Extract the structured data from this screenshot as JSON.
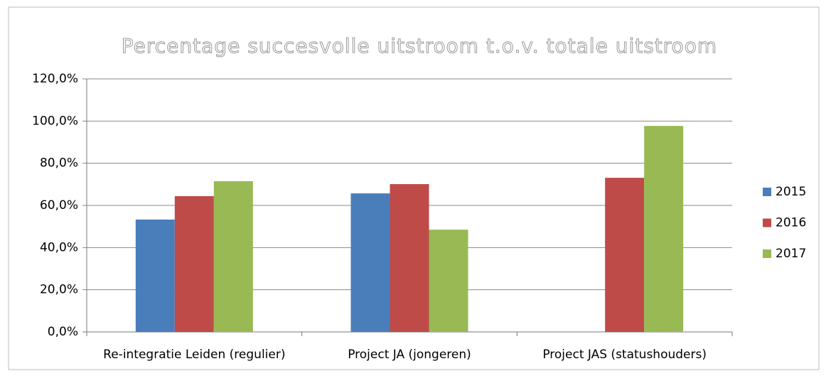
{
  "chart_data": {
    "type": "bar",
    "title": "Percentage succesvolle uitstroom t.o.v. totale uitstroom",
    "categories": [
      "Re-integratie Leiden (regulier)",
      "Project JA (jongeren)",
      "Project JAS (statushouders)"
    ],
    "series": [
      {
        "name": "2015",
        "color": "#4a7ebb",
        "values": [
          53.3,
          65.7,
          null
        ]
      },
      {
        "name": "2016",
        "color": "#be4b48",
        "values": [
          64.4,
          70.1,
          73.1
        ]
      },
      {
        "name": "2017",
        "color": "#98b954",
        "values": [
          71.5,
          48.5,
          97.7
        ]
      }
    ],
    "ylim": [
      0,
      120
    ],
    "yticks": [
      {
        "value": 0,
        "label": "0,0%"
      },
      {
        "value": 20,
        "label": "20,0%"
      },
      {
        "value": 40,
        "label": "40,0%"
      },
      {
        "value": 60,
        "label": "60,0%"
      },
      {
        "value": 80,
        "label": "80,0%"
      },
      {
        "value": 100,
        "label": "100,0%"
      },
      {
        "value": 120,
        "label": "120,0%"
      }
    ],
    "grid": true,
    "legend": "right"
  }
}
